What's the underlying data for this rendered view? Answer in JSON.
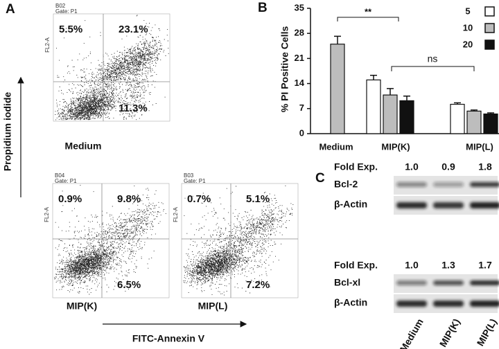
{
  "panel_a": {
    "label": "A",
    "y_axis_label": "Propidium iodide",
    "x_axis_label": "FITC-Annexin V",
    "plots": [
      {
        "sample": "B02",
        "gate": "Gate: P1",
        "axis": "FL2-A",
        "quadrants": [
          "5.5%",
          "23.1%",
          "11.3%"
        ],
        "name": "Medium"
      },
      {
        "sample": "B04",
        "gate": "Gate: P1",
        "axis": "FL2-A",
        "quadrants": [
          "0.9%",
          "9.8%",
          "6.5%"
        ],
        "name": "MIP(K)"
      },
      {
        "sample": "B03",
        "gate": "Gate: P1",
        "axis": "FL2-A",
        "quadrants": [
          "0.7%",
          "5.1%",
          "7.2%"
        ],
        "name": "MIP(L)"
      }
    ]
  },
  "chart_data": {
    "type": "bar",
    "label": "B",
    "y_label": "% PI Positive Cells",
    "categories": [
      "Medium",
      "MIP(K)",
      "MIP(L)"
    ],
    "series": [
      {
        "name": "5",
        "color": "#ffffff",
        "values": [
          null,
          15,
          8.2
        ],
        "errors": [
          null,
          1.3,
          0.4
        ]
      },
      {
        "name": "10",
        "color": "#bdbdbd",
        "values": [
          25,
          10.8,
          6.3
        ],
        "errors": [
          2.2,
          1.8,
          0.3
        ]
      },
      {
        "name": "20",
        "color": "#111111",
        "values": [
          null,
          9.2,
          5.5
        ],
        "errors": [
          null,
          1.3,
          0.3
        ]
      }
    ],
    "ylim": [
      0,
      35
    ],
    "yticks": [
      0,
      7,
      14,
      21,
      28,
      35
    ],
    "annotations": [
      "**",
      "ns"
    ]
  },
  "panel_c": {
    "label": "C",
    "lanes": [
      "Medium",
      "MIP(K)",
      "MIP(L)"
    ],
    "blots": [
      {
        "fold_label": "Fold Exp.",
        "fold": [
          "1.0",
          "0.9",
          "1.8"
        ],
        "protein": "Bcl-2",
        "control": "β-Actin"
      },
      {
        "fold_label": "Fold Exp.",
        "fold": [
          "1.0",
          "1.3",
          "1.7"
        ],
        "protein": "Bcl-xl",
        "control": "β-Actin"
      }
    ]
  }
}
